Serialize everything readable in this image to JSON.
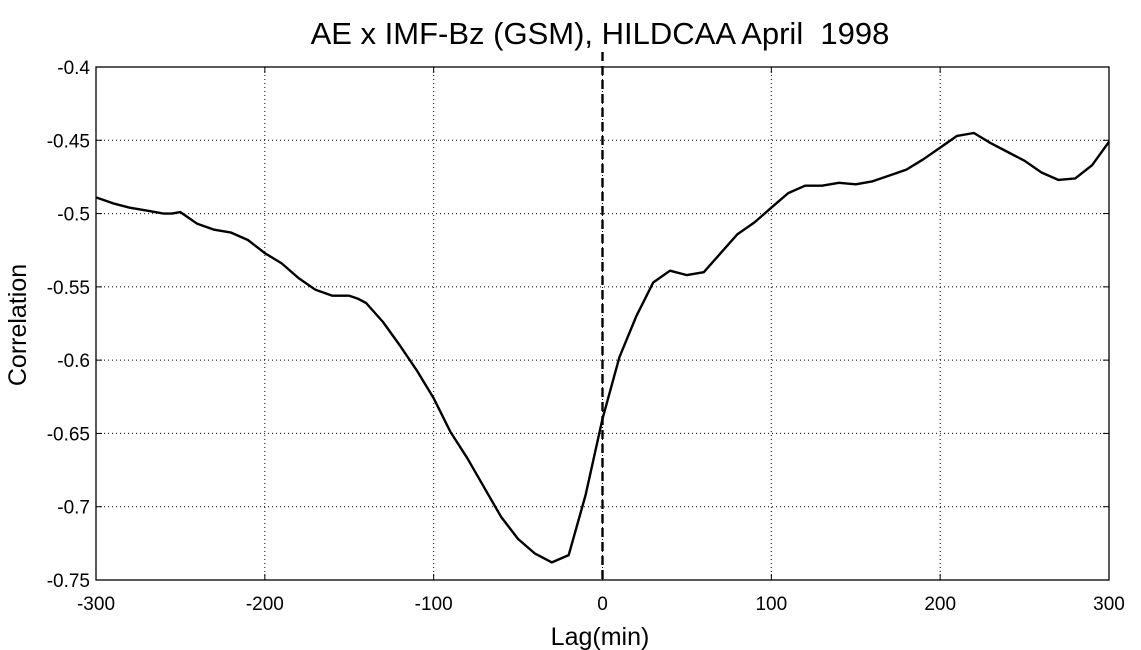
{
  "chart_data": {
    "type": "line",
    "title": "AE x IMF-Bz (GSM), HILDCAA April  1998",
    "xlabel": "Lag(min)",
    "ylabel": "Correlation",
    "xlim": [
      -300,
      300
    ],
    "ylim": [
      -0.75,
      -0.4
    ],
    "xticks": [
      -300,
      -200,
      -100,
      0,
      100,
      200,
      300
    ],
    "xtick_labels": [
      "-300",
      "-200",
      "-100",
      "0",
      "100",
      "200",
      "300"
    ],
    "yticks": [
      -0.75,
      -0.7,
      -0.65,
      -0.6,
      -0.55,
      -0.5,
      -0.45,
      -0.4
    ],
    "ytick_labels": [
      "-0.75",
      "-0.7",
      "-0.65",
      "-0.6",
      "-0.55",
      "-0.5",
      "-0.45",
      "-0.4"
    ],
    "grid": true,
    "reference_line": {
      "x": 0,
      "style": "dashed"
    },
    "series": [
      {
        "color": "#000000",
        "x": [
          -300,
          -290,
          -280,
          -270,
          -260,
          -255,
          -250,
          -245,
          -240,
          -230,
          -220,
          -210,
          -200,
          -190,
          -180,
          -170,
          -160,
          -150,
          -145,
          -140,
          -130,
          -120,
          -110,
          -100,
          -90,
          -80,
          -70,
          -60,
          -50,
          -40,
          -30,
          -20,
          -10,
          0,
          10,
          20,
          30,
          40,
          50,
          60,
          70,
          80,
          90,
          100,
          110,
          120,
          130,
          140,
          150,
          160,
          170,
          180,
          190,
          200,
          210,
          220,
          230,
          240,
          250,
          260,
          270,
          280,
          290,
          300
        ],
        "y": [
          -0.489,
          -0.493,
          -0.496,
          -0.498,
          -0.5,
          -0.5,
          -0.499,
          -0.503,
          -0.507,
          -0.511,
          -0.513,
          -0.518,
          -0.527,
          -0.534,
          -0.544,
          -0.552,
          -0.556,
          -0.556,
          -0.558,
          -0.561,
          -0.574,
          -0.59,
          -0.607,
          -0.626,
          -0.649,
          -0.667,
          -0.687,
          -0.707,
          -0.722,
          -0.732,
          -0.738,
          -0.733,
          -0.692,
          -0.64,
          -0.598,
          -0.57,
          -0.547,
          -0.539,
          -0.542,
          -0.54,
          -0.527,
          -0.514,
          -0.506,
          -0.496,
          -0.486,
          -0.481,
          -0.481,
          -0.479,
          -0.48,
          -0.478,
          -0.474,
          -0.47,
          -0.463,
          -0.455,
          -0.447,
          -0.445,
          -0.452,
          -0.458,
          -0.464,
          -0.472,
          -0.477,
          -0.476,
          -0.467,
          -0.451
        ]
      }
    ]
  }
}
